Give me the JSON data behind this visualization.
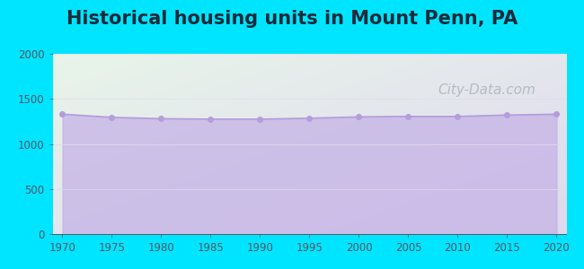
{
  "title": "Historical housing units in Mount Penn, PA",
  "title_fontsize": 15,
  "title_fontweight": "bold",
  "title_color": "#1a2a3a",
  "years": [
    1970,
    1975,
    1980,
    1985,
    1990,
    1995,
    2000,
    2005,
    2010,
    2015,
    2020
  ],
  "values": [
    1330,
    1295,
    1280,
    1275,
    1275,
    1285,
    1300,
    1305,
    1305,
    1320,
    1330
  ],
  "line_color": "#b39ddb",
  "fill_color": "#c5b3e6",
  "fill_alpha": 0.75,
  "marker_color": "#b39ddb",
  "marker_size": 4,
  "background_outer": "#00e5ff",
  "bg_top_left": "#e8f5e9",
  "bg_bottom_right": "#e8e8f8",
  "xlim": [
    1969,
    2021
  ],
  "ylim": [
    0,
    2000
  ],
  "yticks": [
    0,
    500,
    1000,
    1500,
    2000
  ],
  "xticks": [
    1970,
    1975,
    1980,
    1985,
    1990,
    1995,
    2000,
    2005,
    2010,
    2015,
    2020
  ],
  "watermark": "City-Data.com",
  "watermark_color": "#adb5bd",
  "watermark_fontsize": 11,
  "grid_color": "#ddddee",
  "tick_fontsize": 8.5,
  "tick_color": "#555566"
}
